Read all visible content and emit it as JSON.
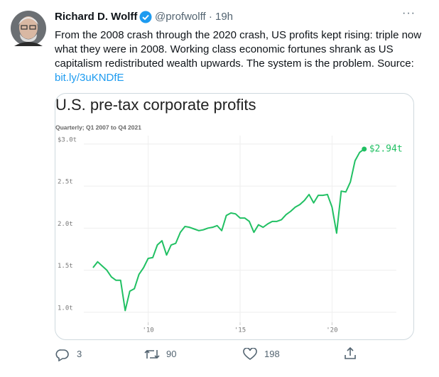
{
  "tweet": {
    "name": "Richard D. Wolff",
    "handle": "@profwolff",
    "separator": "·",
    "time": "19h",
    "more": "···",
    "text": "From the 2008 crash through the 2020 crash, US profits kept rising: triple now what they were in 2008. Working class economic fortunes shrank as US capitalism redistributed wealth upwards. The system is the problem. Source:",
    "link": "bit.ly/3uKNDfE",
    "replies": "3",
    "retweets": "90",
    "likes": "198"
  },
  "chart_data": {
    "type": "line",
    "title": "U.S. pre-tax corporate profits",
    "subtitle": "Quarterly; Q1 2007 to Q4 2021",
    "x": [
      2007,
      2007.25,
      2007.5,
      2007.75,
      2008,
      2008.25,
      2008.5,
      2008.75,
      2009,
      2009.25,
      2009.5,
      2009.75,
      2010,
      2010.25,
      2010.5,
      2010.75,
      2011,
      2011.25,
      2011.5,
      2011.75,
      2012,
      2012.25,
      2012.5,
      2012.75,
      2013,
      2013.25,
      2013.5,
      2013.75,
      2014,
      2014.25,
      2014.5,
      2014.75,
      2015,
      2015.25,
      2015.5,
      2015.75,
      2016,
      2016.25,
      2016.5,
      2016.75,
      2017,
      2017.25,
      2017.5,
      2017.75,
      2018,
      2018.25,
      2018.5,
      2018.75,
      2019,
      2019.25,
      2019.5,
      2019.75,
      2020,
      2020.25,
      2020.5,
      2020.75,
      2021,
      2021.25,
      2021.5,
      2021.75
    ],
    "values": [
      1.53,
      1.6,
      1.55,
      1.5,
      1.42,
      1.38,
      1.38,
      1.02,
      1.25,
      1.28,
      1.45,
      1.53,
      1.64,
      1.65,
      1.8,
      1.85,
      1.68,
      1.8,
      1.82,
      1.95,
      2.02,
      2.01,
      1.99,
      1.97,
      1.98,
      2.0,
      2.01,
      2.03,
      1.97,
      2.15,
      2.18,
      2.17,
      2.12,
      2.12,
      2.08,
      1.95,
      2.04,
      2.01,
      2.05,
      2.08,
      2.08,
      2.1,
      2.16,
      2.2,
      2.25,
      2.28,
      2.33,
      2.4,
      2.3,
      2.39,
      2.39,
      2.4,
      2.25,
      1.94,
      2.44,
      2.43,
      2.55,
      2.8,
      2.9,
      2.94
    ],
    "value_labels": [
      null,
      null,
      null,
      null,
      null,
      null,
      null,
      null,
      null,
      null,
      null,
      null,
      null,
      null,
      null,
      null,
      null,
      null,
      null,
      null,
      null,
      null,
      null,
      null,
      null,
      null,
      null,
      null,
      null,
      null,
      null,
      null,
      null,
      null,
      null,
      null,
      null,
      null,
      null,
      null,
      null,
      null,
      null,
      null,
      null,
      null,
      null,
      null,
      null,
      null,
      null,
      null,
      null,
      null,
      null,
      null,
      null,
      null,
      null,
      "$2.94t"
    ],
    "color": "#21c063",
    "xlim": [
      2006.5,
      2023.5
    ],
    "xticks": [
      {
        "value": 2010,
        "label": "'10"
      },
      {
        "value": 2015,
        "label": "'15"
      },
      {
        "value": 2020,
        "label": "'20"
      }
    ],
    "ylim": [
      0.88,
      3.1
    ],
    "yticks": [
      {
        "value": 1,
        "label": "1.0t"
      },
      {
        "value": 1.5,
        "label": "1.5t"
      },
      {
        "value": 2,
        "label": "2.0t"
      },
      {
        "value": 2.5,
        "label": "2.5t"
      },
      {
        "value": 3,
        "label": "$3.0t"
      }
    ],
    "grid": true
  }
}
